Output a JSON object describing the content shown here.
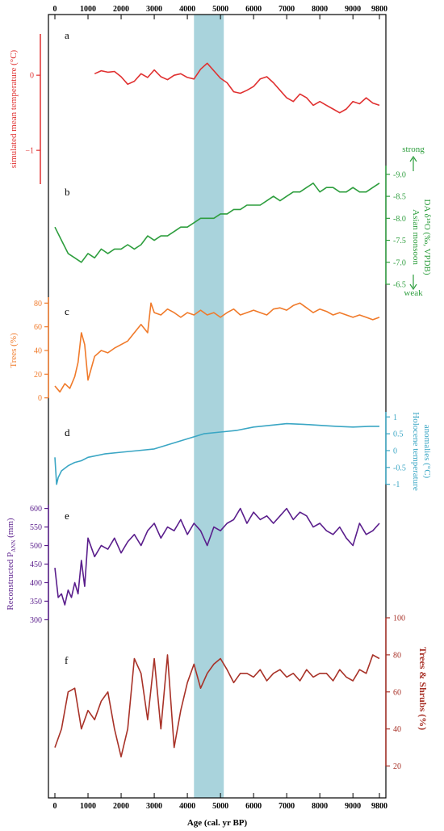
{
  "x_axis": {
    "label": "Age (cal. yr BP)",
    "ticks": [
      0,
      1000,
      2000,
      3000,
      4000,
      5000,
      6000,
      7000,
      8000,
      9000,
      9800
    ],
    "range": [
      0,
      9800
    ]
  },
  "highlight": {
    "from": 4200,
    "to": 5100,
    "color": "#a9d3dc"
  },
  "panels": [
    {
      "letter": "a",
      "color": "#e03030",
      "axis_side": "left",
      "ylabel": "simulated mean temperature (°C)",
      "ytick_labels": [
        "0",
        "−1"
      ],
      "yrange": [
        -1.45,
        0.55
      ]
    },
    {
      "letter": "b",
      "color": "#2e9e3e",
      "axis_side": "right",
      "ylabel_line1": "Asian monsoon",
      "ylabel_line2": "DA δ¹⁸O (‰, VPDB)",
      "strong_label": "strong",
      "weak_label": "weak",
      "ytick_labels": [
        "-9.0",
        "-8.5",
        "-8.0",
        "-7.5",
        "-7.0",
        "-6.5"
      ]
    },
    {
      "letter": "c",
      "color": "#f07a2a",
      "axis_side": "left",
      "ylabel": "Trees (%)",
      "ytick_labels": [
        "80",
        "60",
        "40",
        "20",
        "0"
      ]
    },
    {
      "letter": "d",
      "color": "#3aa6c4",
      "axis_side": "right",
      "ylabel_line1": "Holocene temperature",
      "ylabel_line2": "anomalies (°C)",
      "ytick_labels": [
        "1",
        "0.5",
        "0",
        "-0.5",
        "-1"
      ]
    },
    {
      "letter": "e",
      "color": "#5a1e8c",
      "axis_side": "left",
      "ylabel": "Reconstructed P",
      "ylabel_sub": "ANN",
      "ylabel_unit": " (mm)",
      "ytick_labels": [
        "600",
        "550",
        "500",
        "450",
        "400",
        "350",
        "300"
      ]
    },
    {
      "letter": "f",
      "color": "#a83228",
      "axis_side": "right",
      "ylabel": "Trees & Shrubs (%)",
      "ytick_labels": [
        "100",
        "80",
        "60",
        "40",
        "20"
      ]
    }
  ],
  "chart_data": [
    {
      "type": "line",
      "panel": "a",
      "name": "simulated mean temperature",
      "x": [
        1200,
        1400,
        1600,
        1800,
        2000,
        2200,
        2400,
        2600,
        2800,
        3000,
        3200,
        3400,
        3600,
        3800,
        4000,
        4200,
        4400,
        4600,
        4800,
        5000,
        5200,
        5400,
        5600,
        5800,
        6000,
        6200,
        6400,
        6600,
        6800,
        7000,
        7200,
        7400,
        7600,
        7800,
        8000,
        8200,
        8400,
        8600,
        8800,
        9000,
        9200,
        9400,
        9600,
        9800
      ],
      "values": [
        0.02,
        0.06,
        0.04,
        0.05,
        -0.02,
        -0.12,
        -0.08,
        0.02,
        -0.03,
        0.07,
        -0.02,
        -0.06,
        0.0,
        0.02,
        -0.03,
        -0.05,
        0.08,
        0.16,
        0.06,
        -0.04,
        -0.1,
        -0.22,
        -0.24,
        -0.2,
        -0.15,
        -0.05,
        -0.02,
        -0.1,
        -0.2,
        -0.3,
        -0.35,
        -0.25,
        -0.3,
        -0.4,
        -0.35,
        -0.4,
        -0.45,
        -0.5,
        -0.45,
        -0.35,
        -0.38,
        -0.3,
        -0.37,
        -0.4
      ],
      "ylim": [
        -1.45,
        0.55
      ]
    },
    {
      "type": "line",
      "panel": "b",
      "name": "DA δ18O",
      "x": [
        0,
        200,
        400,
        600,
        800,
        1000,
        1200,
        1400,
        1600,
        1800,
        2000,
        2200,
        2400,
        2600,
        2800,
        3000,
        3200,
        3400,
        3600,
        3800,
        4000,
        4200,
        4400,
        4600,
        4800,
        5000,
        5200,
        5400,
        5600,
        5800,
        6000,
        6200,
        6400,
        6600,
        6800,
        7000,
        7200,
        7400,
        7600,
        7800,
        8000,
        8200,
        8400,
        8600,
        8800,
        9000,
        9200,
        9400,
        9600,
        9800
      ],
      "values": [
        -7.8,
        -7.5,
        -7.2,
        -7.1,
        -7.0,
        -7.2,
        -7.1,
        -7.3,
        -7.2,
        -7.3,
        -7.3,
        -7.4,
        -7.3,
        -7.4,
        -7.6,
        -7.5,
        -7.6,
        -7.6,
        -7.7,
        -7.8,
        -7.8,
        -7.9,
        -8.0,
        -8.0,
        -8.0,
        -8.1,
        -8.1,
        -8.2,
        -8.2,
        -8.3,
        -8.3,
        -8.3,
        -8.4,
        -8.5,
        -8.4,
        -8.5,
        -8.6,
        -8.6,
        -8.7,
        -8.8,
        -8.6,
        -8.7,
        -8.7,
        -8.6,
        -8.6,
        -8.7,
        -8.6,
        -8.6,
        -8.7,
        -8.8
      ],
      "ylim": [
        -6.5,
        -9.2
      ]
    },
    {
      "type": "line",
      "panel": "c",
      "name": "Trees",
      "x": [
        0,
        150,
        300,
        450,
        600,
        700,
        800,
        900,
        1000,
        1100,
        1200,
        1400,
        1600,
        1800,
        2000,
        2200,
        2400,
        2600,
        2800,
        2900,
        3000,
        3200,
        3400,
        3600,
        3800,
        4000,
        4200,
        4400,
        4600,
        4800,
        5000,
        5200,
        5400,
        5600,
        5800,
        6000,
        6200,
        6400,
        6600,
        6800,
        7000,
        7200,
        7400,
        7600,
        7800,
        8000,
        8200,
        8400,
        8600,
        8800,
        9000,
        9200,
        9400,
        9600,
        9800
      ],
      "values": [
        10,
        5,
        12,
        8,
        18,
        30,
        55,
        45,
        15,
        25,
        35,
        40,
        38,
        42,
        45,
        48,
        55,
        62,
        55,
        80,
        72,
        70,
        75,
        72,
        68,
        72,
        70,
        74,
        70,
        72,
        68,
        72,
        75,
        70,
        72,
        74,
        72,
        70,
        75,
        76,
        74,
        78,
        80,
        76,
        72,
        75,
        73,
        70,
        72,
        70,
        68,
        70,
        68,
        66,
        68
      ],
      "ylim": [
        -5,
        85
      ]
    },
    {
      "type": "line",
      "panel": "d",
      "name": "Holocene temperature anomalies",
      "x": [
        0,
        50,
        100,
        200,
        400,
        600,
        800,
        1000,
        1500,
        2000,
        2500,
        3000,
        3500,
        4000,
        4500,
        5000,
        5500,
        6000,
        6500,
        7000,
        7500,
        8000,
        8500,
        9000,
        9500,
        9800
      ],
      "values": [
        -0.2,
        -1.0,
        -0.8,
        -0.6,
        -0.45,
        -0.35,
        -0.3,
        -0.2,
        -0.1,
        -0.05,
        0.0,
        0.05,
        0.2,
        0.35,
        0.5,
        0.55,
        0.6,
        0.7,
        0.75,
        0.8,
        0.78,
        0.75,
        0.72,
        0.7,
        0.72,
        0.72
      ],
      "ylim": [
        -1.2,
        1.15
      ]
    },
    {
      "type": "line",
      "panel": "e",
      "name": "Reconstructed PANN",
      "x": [
        0,
        100,
        200,
        300,
        400,
        500,
        600,
        700,
        800,
        900,
        1000,
        1200,
        1400,
        1600,
        1800,
        2000,
        2200,
        2400,
        2600,
        2800,
        3000,
        3200,
        3400,
        3600,
        3800,
        4000,
        4200,
        4400,
        4600,
        4800,
        5000,
        5200,
        5400,
        5600,
        5800,
        6000,
        6200,
        6400,
        6600,
        6800,
        7000,
        7200,
        7400,
        7600,
        7800,
        8000,
        8200,
        8400,
        8600,
        8800,
        9000,
        9200,
        9400,
        9600,
        9800
      ],
      "values": [
        440,
        360,
        370,
        340,
        380,
        360,
        400,
        370,
        460,
        390,
        520,
        470,
        500,
        490,
        520,
        480,
        510,
        530,
        500,
        540,
        560,
        520,
        550,
        540,
        570,
        530,
        560,
        540,
        500,
        550,
        540,
        560,
        570,
        600,
        560,
        590,
        570,
        580,
        560,
        580,
        600,
        570,
        590,
        580,
        550,
        560,
        540,
        530,
        550,
        520,
        500,
        560,
        530,
        540,
        560
      ],
      "ylim": [
        290,
        610
      ]
    },
    {
      "type": "line",
      "panel": "f",
      "name": "Trees & Shrubs",
      "x": [
        0,
        200,
        400,
        600,
        800,
        1000,
        1200,
        1400,
        1600,
        1800,
        2000,
        2200,
        2400,
        2600,
        2800,
        3000,
        3200,
        3400,
        3600,
        3800,
        4000,
        4200,
        4400,
        4600,
        4800,
        5000,
        5200,
        5400,
        5600,
        5800,
        6000,
        6200,
        6400,
        6600,
        6800,
        7000,
        7200,
        7400,
        7600,
        7800,
        8000,
        8200,
        8400,
        8600,
        8800,
        9000,
        9200,
        9400,
        9600,
        9800
      ],
      "values": [
        30,
        40,
        60,
        62,
        40,
        50,
        45,
        55,
        60,
        40,
        25,
        40,
        78,
        70,
        45,
        78,
        40,
        80,
        30,
        50,
        65,
        75,
        62,
        70,
        75,
        78,
        72,
        65,
        70,
        70,
        68,
        72,
        66,
        70,
        72,
        68,
        70,
        66,
        72,
        68,
        70,
        70,
        66,
        72,
        68,
        66,
        72,
        70,
        80,
        78
      ],
      "ylim": [
        15,
        100
      ]
    }
  ]
}
